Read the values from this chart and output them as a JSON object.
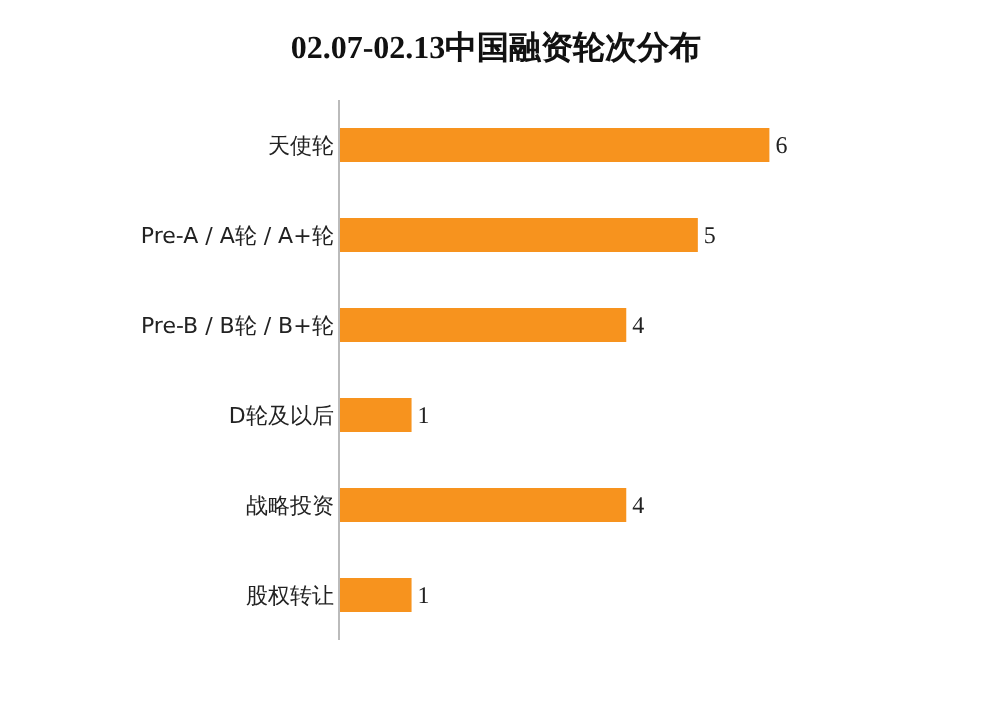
{
  "chart_data": {
    "type": "bar",
    "orientation": "horizontal",
    "title": "02.07-02.13中国融资轮次分布",
    "categories": [
      "天使轮",
      "Pre-A / A轮 / A+轮",
      "Pre-B / B轮 / B+轮",
      "D轮及以后",
      "战略投资",
      "股权转让"
    ],
    "values": [
      6,
      5,
      4,
      1,
      4,
      1
    ],
    "color": "#f7931e",
    "data_labels": true,
    "grid": false
  }
}
